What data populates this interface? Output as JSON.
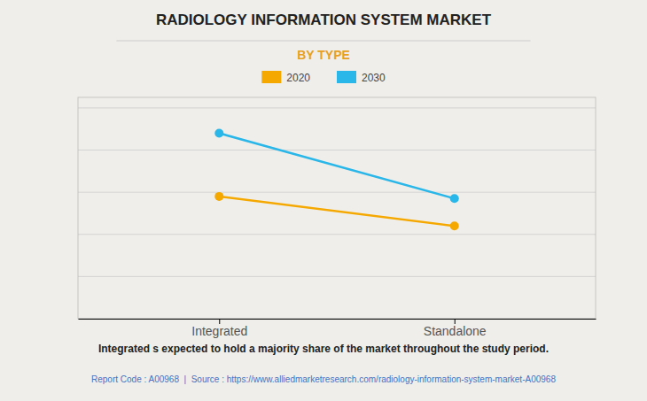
{
  "chart_data": {
    "type": "line",
    "title": "RADIOLOGY INFORMATION SYSTEM MARKET",
    "subtitle": "BY TYPE",
    "categories": [
      "Integrated",
      "Standalone"
    ],
    "series": [
      {
        "name": "2020",
        "color": "#F5A800",
        "values": [
          0.58,
          0.44
        ]
      },
      {
        "name": "2030",
        "color": "#29B6E8",
        "values": [
          0.88,
          0.57
        ]
      }
    ],
    "ylim": [
      0.0,
      1.05
    ],
    "yticks": [
      0,
      0.2,
      0.4,
      0.6,
      0.8,
      1.0
    ],
    "grid": true,
    "tick_labels": "x",
    "legend": "top",
    "marker": "circle",
    "annotations": [
      "Integrated s expected to hold a majority share of the market throughout the study period.",
      "Report Code : A00968  |  Source : https://www.alliedmarketresearch.com/radiology-information-system-market-A00968"
    ]
  }
}
